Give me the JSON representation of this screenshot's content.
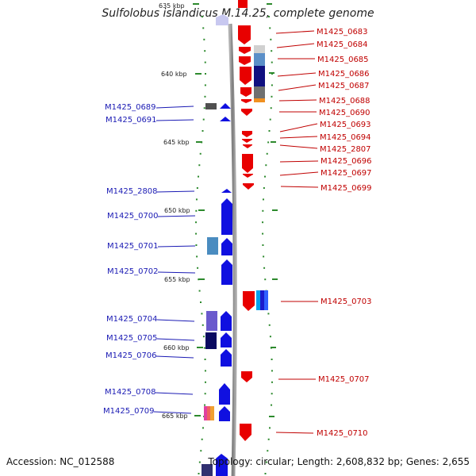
{
  "title": "Sulfolobus islandicus M.14.25, complete genome",
  "accession": "Accession: NC_012588",
  "genome_info": "Topology: circular; Length: 2,608,832 bp; Genes: 2,655",
  "ticks": [
    {
      "label": "635 kbp"
    },
    {
      "label": "640 kbp"
    },
    {
      "label": "645 kbp"
    },
    {
      "label": "650 kbp"
    },
    {
      "label": "655 kbp"
    },
    {
      "label": "660 kbp"
    },
    {
      "label": "665 kbp"
    }
  ],
  "left_labels": [
    "M1425_0689",
    "M1425_0691",
    "M1425_2808",
    "M1425_0700",
    "M1425_0701",
    "M1425_0702",
    "M1425_0704",
    "M1425_0705",
    "M1425_0706",
    "M1425_0708",
    "M1425_0709"
  ],
  "right_labels": [
    "M1425_0683",
    "M1425_0684",
    "M1425_0685",
    "M1425_0686",
    "M1425_0687",
    "M1425_0688",
    "M1425_0690",
    "M1425_0693",
    "M1425_0694",
    "M1425_2807",
    "M1425_0696",
    "M1425_0697",
    "M1425_0699",
    "M1425_0703",
    "M1425_0707",
    "M1425_0710"
  ],
  "colors": {
    "forward_strand": "#e80000",
    "reverse_strand": "#1010e0",
    "backbone": "#8c8c8c",
    "tick": "#2d8a2d",
    "left_label": "#1a1ab4",
    "right_label": "#c00000"
  }
}
